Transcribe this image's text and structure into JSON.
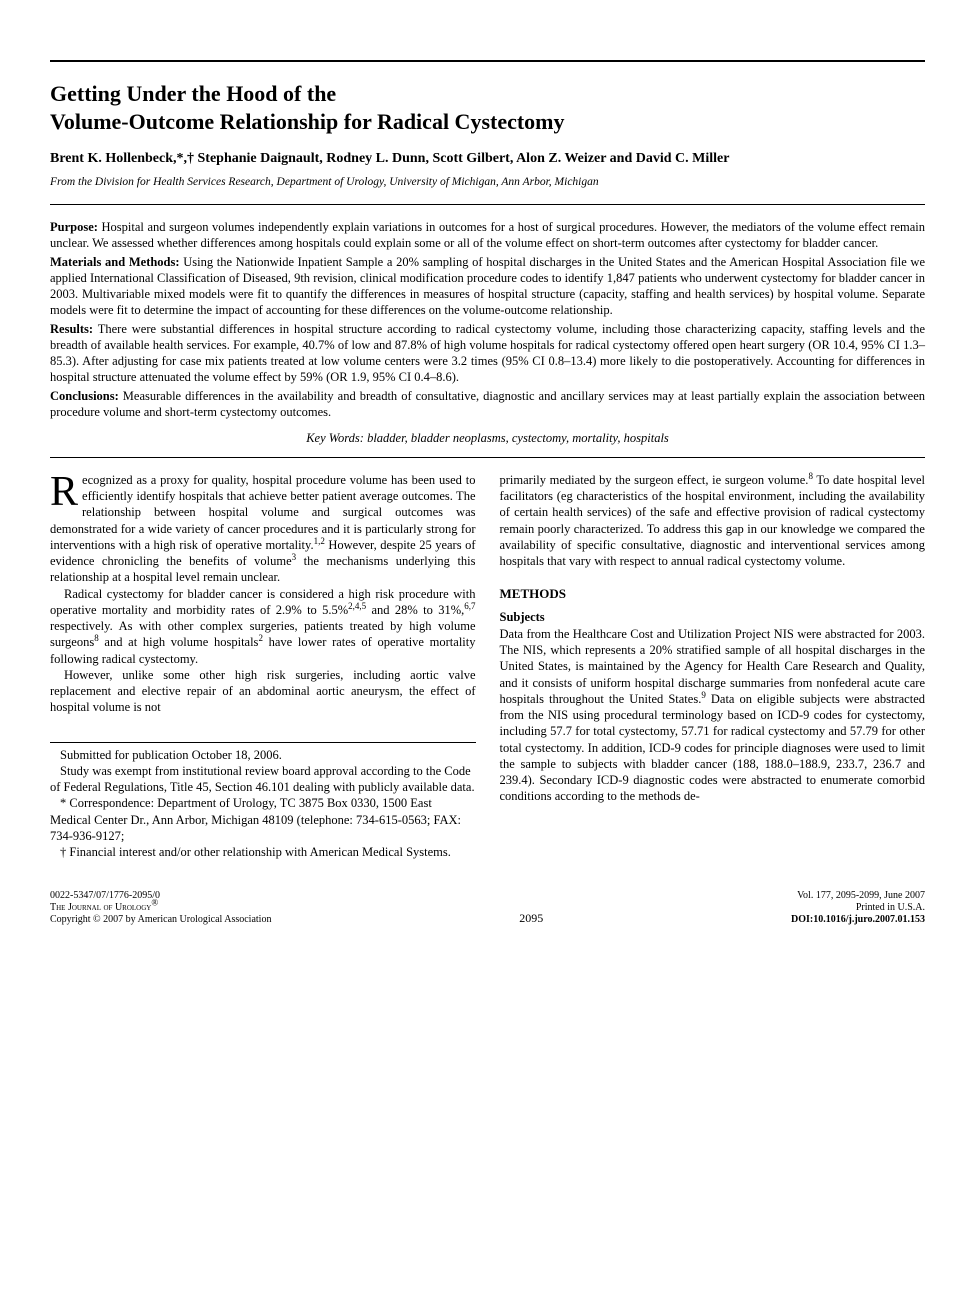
{
  "title_line1": "Getting Under the Hood of the",
  "title_line2": "Volume-Outcome Relationship for Radical Cystectomy",
  "authors": "Brent K. Hollenbeck,*,† Stephanie Daignault, Rodney L. Dunn, Scott Gilbert, Alon Z. Weizer and David C. Miller",
  "affiliation": "From the Division for Health Services Research, Department of Urology, University of Michigan, Ann Arbor, Michigan",
  "abstract": {
    "purpose_label": "Purpose:",
    "purpose": " Hospital and surgeon volumes independently explain variations in outcomes for a host of surgical procedures. However, the mediators of the volume effect remain unclear. We assessed whether differences among hospitals could explain some or all of the volume effect on short-term outcomes after cystectomy for bladder cancer.",
    "methods_label": "Materials and Methods:",
    "methods": " Using the Nationwide Inpatient Sample a 20% sampling of hospital discharges in the United States and the American Hospital Association file we applied International Classification of Diseased, 9th revision, clinical modification procedure codes to identify 1,847 patients who underwent cystectomy for bladder cancer in 2003. Multivariable mixed models were fit to quantify the differences in measures of hospital structure (capacity, staffing and health services) by hospital volume. Separate models were fit to determine the impact of accounting for these differences on the volume-outcome relationship.",
    "results_label": "Results:",
    "results": " There were substantial differences in hospital structure according to radical cystectomy volume, including those characterizing capacity, staffing levels and the breadth of available health services. For example, 40.7% of low and 87.8% of high volume hospitals for radical cystectomy offered open heart surgery (OR 10.4, 95% CI 1.3–85.3). After adjusting for case mix patients treated at low volume centers were 3.2 times (95% CI 0.8–13.4) more likely to die postoperatively. Accounting for differences in hospital structure attenuated the volume effect by 59% (OR 1.9, 95% CI 0.4–8.6).",
    "conclusions_label": "Conclusions:",
    "conclusions": " Measurable differences in the availability and breadth of consultative, diagnostic and ancillary services may at least partially explain the association between procedure volume and short-term cystectomy outcomes."
  },
  "keywords": "Key Words: bladder, bladder neoplasms, cystectomy, mortality, hospitals",
  "body": {
    "p1a": "Recognized as a proxy for quality, hospital procedure volume has been used to efficiently identify hospitals that achieve better patient average outcomes. The relationship between hospital volume and surgical outcomes was demonstrated for a wide variety of cancer procedures and it is particularly strong for interventions with a high risk of operative mortality.",
    "p1b": " However, despite 25 years of evidence chronicling the benefits of volume",
    "p1c": " the mechanisms underlying this relationship at a hospital level remain unclear.",
    "p2a": "Radical cystectomy for bladder cancer is considered a high risk procedure with operative mortality and morbidity rates of 2.9% to 5.5%",
    "p2b": " and 28% to 31%,",
    "p2c": " respectively. As with other complex surgeries, patients treated by high volume surgeons",
    "p2d": " and at high volume hospitals",
    "p2e": " have lower rates of operative mortality following radical cystectomy.",
    "p3a": "However, unlike some other high risk surgeries, including aortic valve replacement and elective repair of an abdominal aortic aneurysm, the effect of hospital volume is not",
    "p3b": "primarily mediated by the surgeon effect, ie surgeon volume.",
    "p3c": " To date hospital level facilitators (eg characteristics of the hospital environment, including the availability of certain health services) of the safe and effective provision of radical cystectomy remain poorly characterized. To address this gap in our knowledge we compared the availability of specific consultative, diagnostic and interventional services among hospitals that vary with respect to annual radical cystectomy volume.",
    "methods_head": "METHODS",
    "subjects_head": "Subjects",
    "p4a": "Data from the Healthcare Cost and Utilization Project NIS were abstracted for 2003. The NIS, which represents a 20% stratified sample of all hospital discharges in the United States, is maintained by the Agency for Health Care Research and Quality, and it consists of uniform hospital discharge summaries from nonfederal acute care hospitals throughout the United States.",
    "p4b": " Data on eligible subjects were abstracted from the NIS using procedural terminology based on ICD-9 codes for cystectomy, including 57.7 for total cystectomy, 57.71 for radical cystectomy and 57.79 for other total cystectomy. In addition, ICD-9 codes for principle diagnoses were used to limit the sample to subjects with bladder cancer (188, 188.0–188.9, 233.7, 236.7 and 239.4). Secondary ICD-9 diagnostic codes were abstracted to enumerate comorbid conditions according to the methods de-"
  },
  "refs": {
    "r12": "1,2",
    "r3": "3",
    "r245": "2,4,5",
    "r67": "6,7",
    "r8": "8",
    "r2": "2",
    "r8b": "8",
    "r9": "9"
  },
  "footnotes": {
    "f1": "Submitted for publication October 18, 2006.",
    "f2": "Study was exempt from institutional review board approval according to the Code of Federal Regulations, Title 45, Section 46.101 dealing with publicly available data.",
    "f3": "* Correspondence: Department of Urology, TC 3875 Box 0330, 1500 East Medical Center Dr., Ann Arbor, Michigan 48109 (telephone: 734-615-0563; FAX: 734-936-9127;",
    "f4": "† Financial interest and/or other relationship with American Medical Systems."
  },
  "footer": {
    "issn": "0022-5347/07/1776-2095/0",
    "journal": "The Journal of Urology",
    "copyright": "Copyright © 2007 by American Urological Association",
    "page": "2095",
    "vol": "Vol. 177, 2095-2099, June 2007",
    "printed": "Printed in U.S.A.",
    "doi": "DOI:10.1016/j.juro.2007.01.153"
  }
}
